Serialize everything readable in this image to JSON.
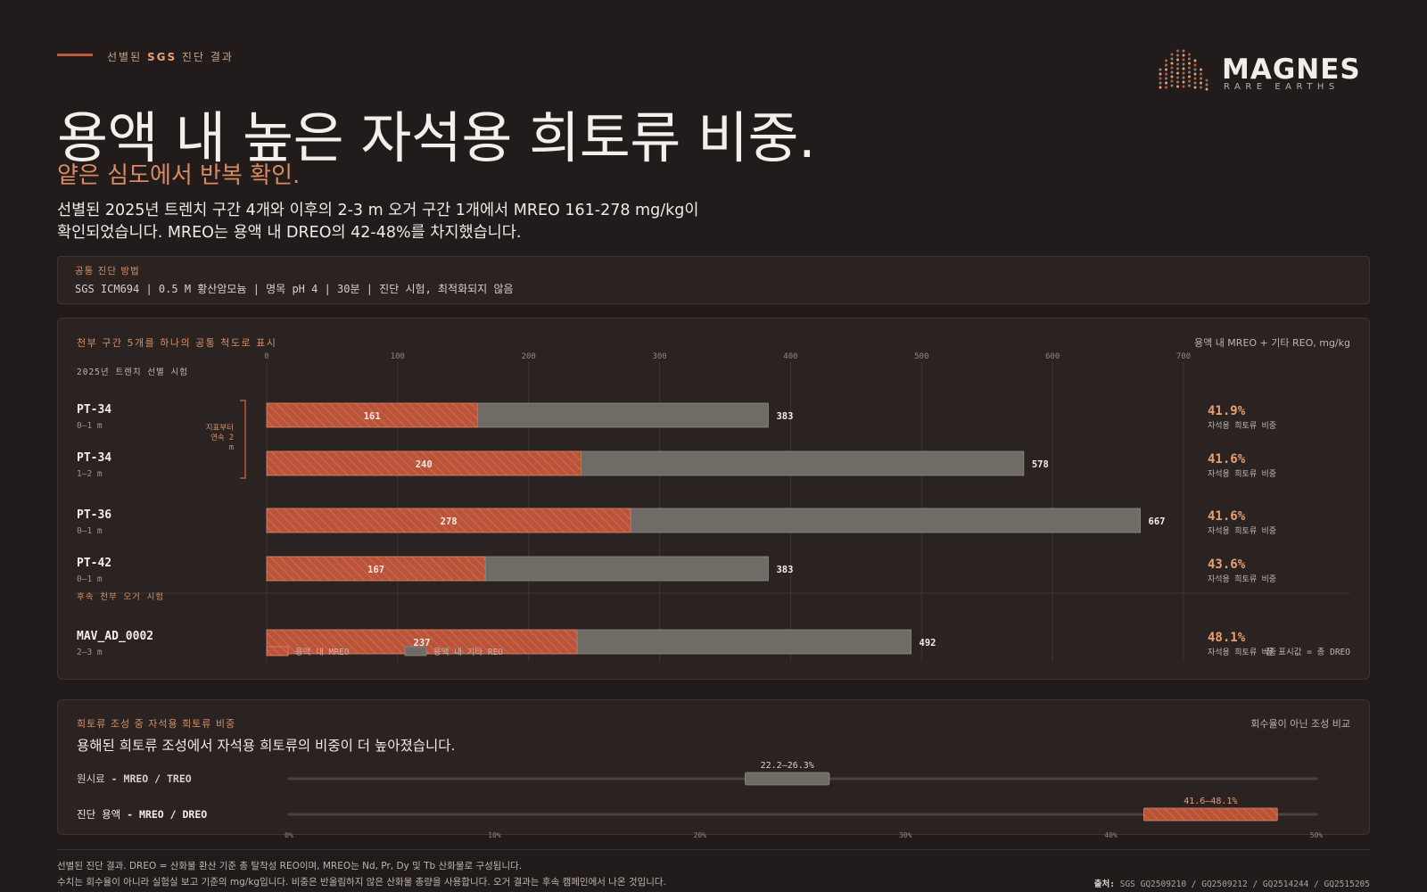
{
  "header": {
    "eyebrow_pre": "선별된",
    "eyebrow_strong": "SGS",
    "eyebrow_post": "진단 결과",
    "title": "용액 내 높은 자석용 희토류 비중.",
    "subtitle": "얕은 심도에서 반복 확인.",
    "lead": "선별된 2025년 트렌치 구간 4개와 이후의 2-3 m 오거 구간 1개에서 MREO 161-278 mg/kg이 확인되었습니다. MREO는 용액 내 DREO의 42-48%를 차지했습니다."
  },
  "logo": {
    "word": "MAGNES",
    "sub": "RARE EARTHS",
    "dot_colors": [
      "#c0583a",
      "#8a817b",
      "#e8a072"
    ]
  },
  "method": {
    "label": "공통 진단 방법",
    "text": "SGS ICM694 | 0.5 M 황산암모늄 | 명목 pH 4 | 30분 | 진단 시험, 최적화되지 않음"
  },
  "colors": {
    "mreo": "#b9533a",
    "other": "#6f6c66",
    "accent": "#e8a072",
    "background": "#211c1b"
  },
  "chart_data": {
    "type": "bar",
    "stacked": true,
    "orientation": "horizontal",
    "title": "천부 구간 5개를 하나의 공통 척도로 표시",
    "units_label": "용액 내 MREO + 기타 REO, mg/kg",
    "xlim": [
      0,
      700
    ],
    "xticks": [
      0,
      100,
      200,
      300,
      400,
      500,
      600,
      700
    ],
    "groups": [
      {
        "label": "2025년 트렌치 선별 시험",
        "rows": [
          0,
          1,
          2,
          3
        ]
      },
      {
        "label": "후속 천부 오거 시험",
        "rows": [
          4
        ]
      }
    ],
    "bracket": {
      "rows": [
        0,
        1
      ],
      "label_lines": [
        "지표부터",
        "연속 2",
        "m"
      ]
    },
    "categories": [
      {
        "id": "PT-34",
        "depth": "0–1 m"
      },
      {
        "id": "PT-34",
        "depth": "1–2 m"
      },
      {
        "id": "PT-36",
        "depth": "0–1 m"
      },
      {
        "id": "PT-42",
        "depth": "0–1 m"
      },
      {
        "id": "MAV_AD_0002",
        "depth": "2–3 m"
      }
    ],
    "series": [
      {
        "name": "용액 내 MREO",
        "values": [
          161,
          240,
          278,
          167,
          237
        ]
      },
      {
        "name": "용액 내 기타 REO",
        "values": [
          222,
          338,
          389,
          216,
          255
        ]
      }
    ],
    "totals": [
      383,
      578,
      667,
      383,
      492
    ],
    "shares": [
      "41.9%",
      "41.6%",
      "41.6%",
      "43.6%",
      "48.1%"
    ],
    "share_caption": "자석용 희토류 비중",
    "end_note": "끝 표시값 = 총 DREO",
    "legend": "bottom-left",
    "grid": true
  },
  "composition": {
    "label": "희토류 조성 중 자석용 희토류 비중",
    "note": "회수율이 아닌 조성 비교",
    "headline": "용해된 희토류 조성에서 자석용 희토류의 비중이 더 높아졌습니다.",
    "chart_data": {
      "type": "range",
      "xlim": [
        0,
        50
      ],
      "xticks": [
        "0%",
        "10%",
        "20%",
        "30%",
        "40%",
        "50%"
      ],
      "rows": [
        {
          "label_pre": "원시료",
          "label_post": "- MREO / TREO",
          "low": 22.2,
          "high": 26.3,
          "range_label": "22.2–26.3%"
        },
        {
          "label_pre": "진단 용액",
          "label_post": "- MREO / DREO",
          "low": 41.6,
          "high": 48.1,
          "range_label": "41.6–48.1%"
        }
      ]
    }
  },
  "footer": {
    "line1": "선별된 진단 결과. DREO = 산화물 환산 기준 총 탈착성 REO이며, MREO는 Nd, Pr, Dy 및 Tb 산화물로 구성됩니다.",
    "line2": "수치는 회수율이 아니라 실험실 보고 기준의 mg/kg입니다. 비중은 반올림하지 않은 산화물 총량을 사용합니다. 오거 결과는 후속 캠페인에서 나온 것입니다.",
    "source_label": "출처:",
    "source": "SGS GQ2509210 / GQ2509212 / GQ2514244 / GQ2515205"
  }
}
